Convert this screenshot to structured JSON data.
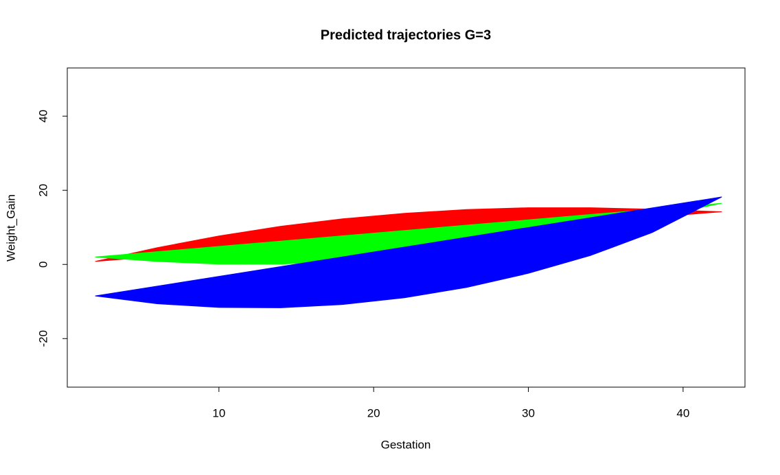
{
  "chart_data": {
    "type": "line",
    "title": "Predicted trajectories G=3",
    "x_label": "Gestation",
    "y_label": "Weight_Gain",
    "x": [
      2,
      6,
      10,
      14,
      18,
      22,
      26,
      30,
      34,
      38,
      42.5
    ],
    "series": [
      {
        "color": "#ff0000",
        "values": [
          0.8,
          4.5,
          7.7,
          10.3,
          12.3,
          13.8,
          14.8,
          15.3,
          15.3,
          14.9,
          14.2
        ]
      },
      {
        "color": "#00ff00",
        "values": [
          2.0,
          0.8,
          0.1,
          0.1,
          0.9,
          2.3,
          4.2,
          6.6,
          9.4,
          12.6,
          16.5
        ]
      },
      {
        "color": "#0000ff",
        "values": [
          -8.5,
          -10.6,
          -11.6,
          -11.7,
          -10.8,
          -9.0,
          -6.2,
          -2.4,
          2.4,
          8.6,
          18.2
        ]
      }
    ],
    "filled": true,
    "xlim": [
      0.2,
      44.0
    ],
    "ylim": [
      -33.1,
      53.0
    ],
    "xticks": [
      10,
      20,
      30,
      40
    ],
    "yticks": [
      -20,
      0,
      20,
      40
    ]
  }
}
